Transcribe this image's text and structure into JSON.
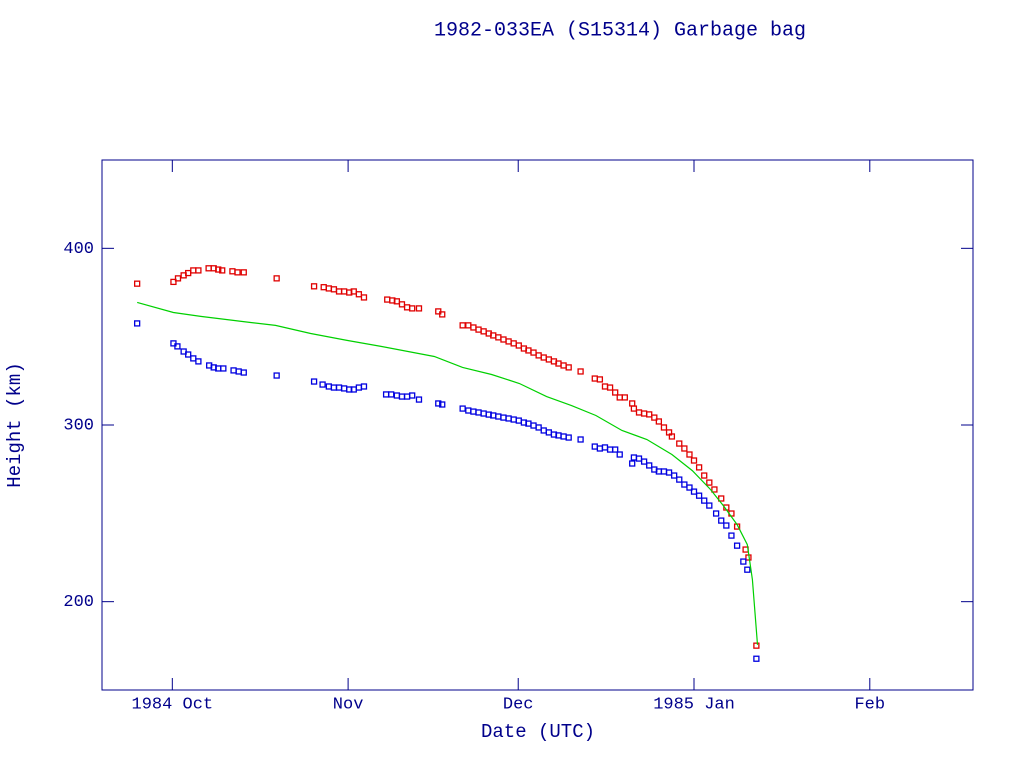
{
  "chart_data": {
    "type": "scatter",
    "title": "1982-033EA (S15314) Garbage bag",
    "x_label": "Date (UTC)",
    "y_label": "Height (km)",
    "xlim": [
      -12.4,
      141.2
    ],
    "ylim": [
      150,
      450
    ],
    "xticks": [
      {
        "value": 0,
        "label": "1984 Oct"
      },
      {
        "value": 31,
        "label": "Nov"
      },
      {
        "value": 61,
        "label": "Dec"
      },
      {
        "value": 92,
        "label": "1985 Jan"
      },
      {
        "value": 123,
        "label": "Feb"
      }
    ],
    "yticks": [
      200,
      300,
      400
    ],
    "axis_color": "#00008b",
    "series": [
      {
        "mode": "markers",
        "color": "#e00000",
        "x": [
          -6.2,
          0.2,
          1,
          2,
          2.8,
          3.7,
          4.6,
          6.4,
          7.3,
          8.1,
          8.8,
          10.6,
          11.5,
          12.6,
          18.4,
          25,
          26.7,
          27.6,
          28.5,
          29.4,
          30.3,
          31.2,
          32,
          32.9,
          33.8,
          37.9,
          38.8,
          39.6,
          40.5,
          41.4,
          42.3,
          43.5,
          46.9,
          47.6,
          51.2,
          52.2,
          53.1,
          54,
          54.9,
          55.8,
          56.6,
          57.5,
          58.4,
          59.3,
          60.2,
          61.1,
          62,
          62.8,
          63.7,
          64.6,
          65.5,
          66.4,
          67.3,
          68.1,
          69,
          69.9,
          72,
          74.5,
          75.4,
          76.3,
          77.2,
          78.1,
          78.9,
          79.8,
          81.1,
          81.4,
          82.3,
          83.2,
          84.1,
          85,
          85.8,
          86.7,
          87.6,
          88.1,
          89.4,
          90.3,
          91.2,
          92,
          92.9,
          93.8,
          94.7,
          95.6,
          96.8,
          97.7,
          98.6,
          99.6,
          101.1,
          101.6,
          103
        ],
        "values": [
          380,
          381,
          383,
          384.7,
          386,
          387.5,
          387.5,
          388.7,
          388.7,
          388,
          387.5,
          387,
          386.4,
          386.4,
          383,
          378.5,
          378,
          377.3,
          376.8,
          375.6,
          375.6,
          375,
          375.6,
          374,
          372.2,
          371,
          370.5,
          370,
          368.3,
          366.6,
          366,
          366,
          364.3,
          362.6,
          356.4,
          356.4,
          355.2,
          354,
          353,
          351.8,
          350.7,
          349.6,
          348.4,
          347.3,
          346.2,
          345,
          343.3,
          342.2,
          341,
          339.4,
          338.2,
          337.1,
          336,
          334.8,
          333.7,
          332.6,
          330.3,
          326.3,
          325.8,
          321.8,
          321.2,
          318.4,
          315.6,
          315.6,
          312.2,
          309.3,
          307.1,
          306.5,
          306,
          304.2,
          302,
          298.6,
          295.8,
          293.5,
          289.5,
          286.7,
          283.3,
          279.9,
          276,
          271.4,
          267.4,
          263.5,
          258.4,
          253.3,
          249.9,
          242.5,
          229.5,
          225,
          175.1
        ]
      },
      {
        "mode": "markers",
        "color": "#0000e0",
        "x": [
          -6.2,
          0.2,
          0.9,
          2,
          2.8,
          3.7,
          4.6,
          6.5,
          7.3,
          8.1,
          9,
          10.8,
          11.7,
          12.6,
          18.4,
          25,
          26.5,
          27.6,
          28.5,
          29.4,
          30.3,
          31.2,
          32,
          32.9,
          33.8,
          37.7,
          38.6,
          39.6,
          40.5,
          41.4,
          42.3,
          43.5,
          46.9,
          47.6,
          51.2,
          52.2,
          53.1,
          54,
          54.9,
          55.8,
          56.6,
          57.5,
          58.4,
          59.3,
          60.2,
          61.1,
          62,
          62.8,
          63.7,
          64.6,
          65.5,
          66.4,
          67.3,
          68.1,
          69,
          69.9,
          72,
          74.5,
          75.4,
          76.3,
          77.2,
          78.1,
          78.9,
          81.1,
          81.4,
          82.3,
          83.2,
          84.1,
          85,
          85.8,
          86.7,
          87.6,
          88.5,
          89.4,
          90.3,
          91.2,
          92,
          92.9,
          93.8,
          94.7,
          95.9,
          96.8,
          97.7,
          98.6,
          99.6,
          100.7,
          101.4,
          103
        ],
        "values": [
          357.5,
          346.2,
          344.5,
          341.6,
          339.9,
          337.7,
          336,
          333.7,
          332.6,
          332,
          332,
          330.9,
          330.3,
          329.7,
          328,
          324.6,
          322.9,
          321.8,
          321.2,
          321.2,
          320.7,
          320.1,
          320.1,
          321.2,
          321.8,
          317.3,
          317.3,
          316.7,
          316.1,
          316.1,
          316.7,
          314.4,
          312.2,
          311.6,
          309.3,
          308.2,
          307.6,
          307.1,
          306.5,
          305.9,
          305.4,
          304.8,
          304.2,
          303.7,
          303.1,
          302.5,
          301.4,
          300.8,
          299.7,
          298.6,
          296.9,
          295.8,
          294.6,
          294.1,
          293.5,
          292.9,
          291.8,
          287.8,
          286.7,
          287.3,
          286.1,
          286.1,
          283.3,
          278.2,
          281.6,
          281,
          279.3,
          277.1,
          274.8,
          273.7,
          273.7,
          273.1,
          271.4,
          269.1,
          266.3,
          264.6,
          262.3,
          260,
          257.2,
          254.4,
          249.9,
          245.9,
          243.1,
          237.4,
          231.7,
          222.7,
          218.1,
          167.7
        ]
      },
      {
        "mode": "line",
        "color": "#00d000",
        "x": [
          -6.2,
          0.2,
          5,
          13.8,
          18.2,
          24.4,
          30.8,
          36.8,
          46.2,
          51.2,
          56.3,
          61.2,
          66,
          70.4,
          74.7,
          79.3,
          83.7,
          88.1,
          91.7,
          94.9,
          97.3,
          99.6,
          101.4,
          102.3,
          103.2
        ],
        "values": [
          369.4,
          363.7,
          361.5,
          358,
          356.4,
          351.8,
          347.9,
          344.5,
          338.8,
          332.6,
          328.6,
          323.5,
          316.1,
          311,
          305.4,
          296.9,
          291.8,
          283.3,
          274.2,
          263.5,
          253.8,
          243.6,
          232.3,
          212.5,
          175.6
        ]
      }
    ]
  }
}
